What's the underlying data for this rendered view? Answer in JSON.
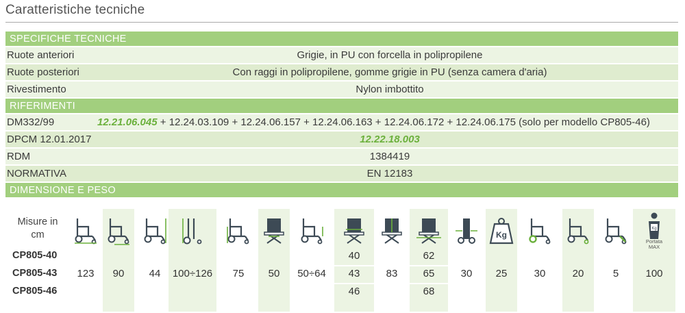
{
  "title": "Caratteristiche tecniche",
  "specifiche": {
    "header": "SPECIFICHE TECNICHE",
    "rows": [
      {
        "label": "Ruote anteriori",
        "value": "Grigie, in PU con forcella in polipropilene"
      },
      {
        "label": "Ruote posteriori",
        "value": "Con raggi in polipropilene, gomme grigie in PU (senza camera d'aria)"
      },
      {
        "label": "Rivestimento",
        "value": "Nylon imbottito"
      }
    ]
  },
  "riferimenti": {
    "header": "RIFERIMENTI",
    "dm_label": "DM332/99",
    "dm_code": "12.21.06.045",
    "dm_rest": " + 12.24.03.109  + 12.24.06.157 + 12.24.06.163 + 12.24.06.172 + 12.24.06.175 (solo per modello CP805-46)",
    "dpcm_label": "DPCM 12.01.2017",
    "dpcm_code": "12.22.18.003",
    "rdm_label": "RDM",
    "rdm_value": "1384419",
    "norm_label": "NORMATIVA",
    "norm_value": "EN 12183"
  },
  "dimensioni": {
    "header": "DIMENSIONE E PESO",
    "misure_label": "Misure in cm",
    "portata_label": "Portata MAX",
    "icons": [
      "chair-length-icon",
      "chair-width-icon",
      "chair-height-icon",
      "folded-height-icon",
      "seat-height-icon",
      "seat-width-icon",
      "armrest-height-icon",
      "seat-depth-icon",
      "backrest-height-icon",
      "overall-width-icon",
      "folded-width-icon",
      "weight-icon",
      "rear-wheel-icon",
      "front-wheel-icon",
      "footrest-icon",
      "max-load-icon"
    ],
    "models": [
      "CP805-40",
      "CP805-43",
      "CP805-46"
    ],
    "shared": [
      "123",
      "90",
      "44",
      "100÷126",
      "75",
      "50",
      "50÷64",
      "83",
      "30",
      "25",
      "30",
      "20",
      "5",
      "100"
    ],
    "seat_width": [
      "40",
      "43",
      "46"
    ],
    "overall_width": [
      "62",
      "65",
      "68"
    ]
  }
}
